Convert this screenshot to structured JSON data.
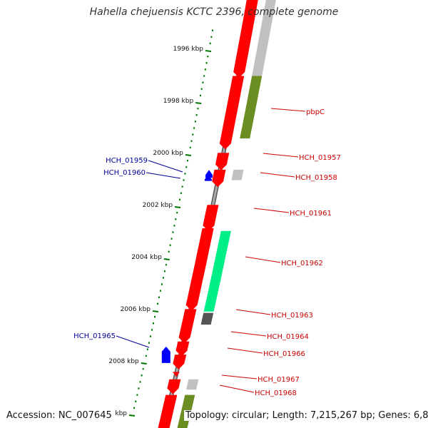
{
  "title": "Hahella chejuensis KCTC 2396, complete genome",
  "footer": {
    "accession": "Accession: NC_007645",
    "topology": "Topology: circular; Length: 7,215,267 bp; Genes: 6,860"
  },
  "colors": {
    "forward_gene": "#ff0000",
    "cds_grey": "#c0c0c0",
    "cds_olive": "#6b8e23",
    "cds_green": "#00ee88",
    "cds_dark": "#555555",
    "reverse_gene": "#0000ff",
    "tick": "#007700",
    "backbone": "#888888",
    "label_forward": "#cc0000",
    "label_reverse": "#000099"
  },
  "scale_ticks": [
    {
      "kbp": 1996,
      "label": "1996 kbp"
    },
    {
      "kbp": 1998,
      "label": "1998 kbp"
    },
    {
      "kbp": 2000,
      "label": "2000 kbp"
    },
    {
      "kbp": 2002,
      "label": "2002 kbp"
    },
    {
      "kbp": 2004,
      "label": "2004 kbp"
    },
    {
      "kbp": 2006,
      "label": "2006 kbp"
    },
    {
      "kbp": 2008,
      "label": "2008 kbp"
    },
    {
      "kbp": 2010,
      "label": "2010 kbp"
    }
  ],
  "labels_forward": [
    "pbpC",
    "HCH_01957",
    "HCH_01958",
    "HCH_01961",
    "HCH_01962",
    "HCH_01963",
    "HCH_01964",
    "HCH_01966",
    "HCH_01967",
    "HCH_01968"
  ],
  "labels_reverse": [
    "HCH_01959",
    "HCH_01960",
    "HCH_01965"
  ]
}
